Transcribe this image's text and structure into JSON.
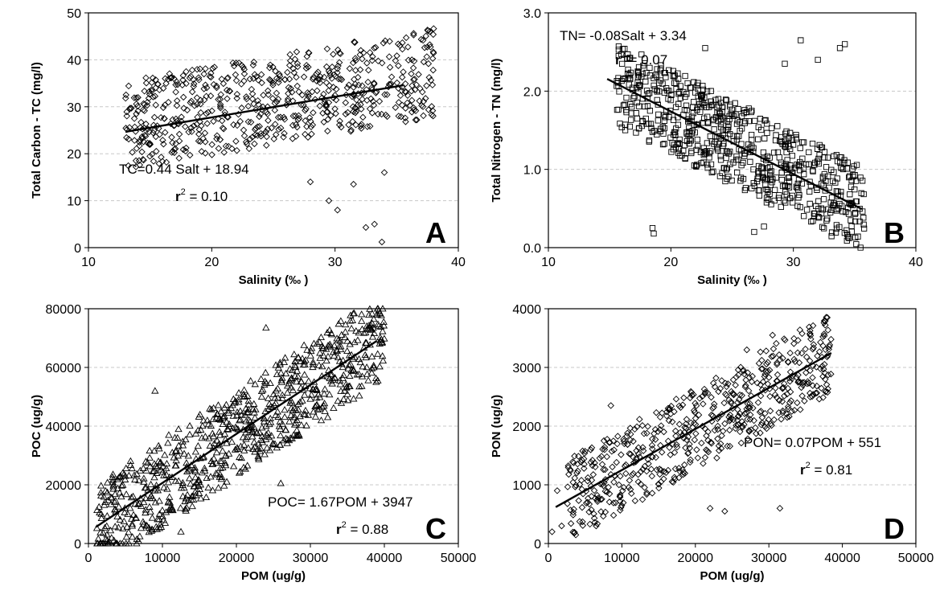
{
  "chart_data": [
    {
      "panel": "A",
      "type": "scatter",
      "marker": "diamond",
      "xlabel": "Salinity (‰ )",
      "ylabel": "Total Carbon - TC (mg/l)",
      "xlim": [
        10,
        40
      ],
      "ylim": [
        0,
        50
      ],
      "xticks": [
        10,
        20,
        30,
        40
      ],
      "yticks": [
        0,
        10,
        20,
        30,
        40,
        50
      ],
      "grid": true,
      "regression": {
        "slope": 0.44,
        "intercept": 18.94,
        "x_range": [
          13,
          35.5
        ]
      },
      "equation": {
        "main": "TC=0.44 Salt + 18.94",
        "r2_prefix": "r",
        "r2_value": " = 0.10"
      },
      "cluster": {
        "x_range": [
          13,
          38
        ],
        "y_low_offset": -8,
        "y_high_offset": 11,
        "n": 650
      },
      "outliers": [
        [
          30.2,
          8
        ],
        [
          31.5,
          13.5
        ],
        [
          32.5,
          4.3
        ],
        [
          33.2,
          5
        ],
        [
          33.8,
          1.2
        ],
        [
          28,
          14
        ],
        [
          29.5,
          10
        ],
        [
          34,
          16
        ]
      ]
    },
    {
      "panel": "B",
      "type": "scatter",
      "marker": "square",
      "xlabel": "Salinity (‰ )",
      "ylabel": "Total Nitrogen - TN (mg/l)",
      "xlim": [
        10,
        40
      ],
      "ylim": [
        0,
        3
      ],
      "xticks": [
        10,
        20,
        30,
        40
      ],
      "yticks": [
        0,
        1,
        2,
        3
      ],
      "ytick_decimals": 1,
      "grid": true,
      "regression": {
        "slope": -0.08,
        "intercept": 3.34,
        "x_range": [
          14.8,
          35.6
        ]
      },
      "equation": {
        "main": "TN= -0.08Salt + 3.34",
        "r2_prefix": "r",
        "r2_value": " = 0.07"
      },
      "cluster": {
        "x_range": [
          15.5,
          35.8
        ],
        "y_low_offset": -0.55,
        "y_high_offset": 0.55,
        "n": 700
      },
      "outliers": [
        [
          18.5,
          0.25
        ],
        [
          18.6,
          0.18
        ],
        [
          22.8,
          2.55
        ],
        [
          30.6,
          2.65
        ],
        [
          33.8,
          2.55
        ],
        [
          34.2,
          2.6
        ],
        [
          26.8,
          0.2
        ],
        [
          27.6,
          0.27
        ],
        [
          29.3,
          2.35
        ],
        [
          32,
          2.4
        ]
      ]
    },
    {
      "panel": "C",
      "type": "scatter",
      "marker": "triangle",
      "xlabel": "POM (ug/g)",
      "ylabel": "POC (ug/g)",
      "xlim": [
        0,
        50000
      ],
      "ylim": [
        0,
        80000
      ],
      "xticks": [
        0,
        10000,
        20000,
        30000,
        40000,
        50000
      ],
      "yticks": [
        0,
        20000,
        40000,
        60000,
        80000
      ],
      "grid": true,
      "regression": {
        "slope": 1.67,
        "intercept": 3947,
        "x_range": [
          1000,
          39000
        ]
      },
      "equation": {
        "main": "POC= 1.67POM + 3947",
        "r2_prefix": "r",
        "r2_value": " = 0.88"
      },
      "cluster": {
        "x_range": [
          1000,
          40000
        ],
        "y_low_offset": -15000,
        "y_high_offset": 15000,
        "n": 800
      },
      "outliers": [
        [
          1500,
          10500
        ],
        [
          2500,
          3000
        ],
        [
          9000,
          52000
        ],
        [
          24000,
          73500
        ],
        [
          12500,
          4000
        ],
        [
          26000,
          20500
        ],
        [
          37000,
          73000
        ],
        [
          38500,
          73500
        ]
      ]
    },
    {
      "panel": "D",
      "type": "scatter",
      "marker": "diamond",
      "xlabel": "POM (ug/g)",
      "ylabel": "PON (ug/g)",
      "xlim": [
        0,
        50000
      ],
      "ylim": [
        0,
        4000
      ],
      "xticks": [
        0,
        10000,
        20000,
        30000,
        40000,
        50000
      ],
      "yticks": [
        0,
        1000,
        2000,
        3000,
        4000
      ],
      "grid": true,
      "regression": {
        "slope": 0.07,
        "intercept": 551,
        "x_range": [
          1000,
          38500
        ]
      },
      "equation": {
        "main": "PON= 0.07POM + 551",
        "r2_prefix": "r",
        "r2_value": " = 0.81"
      },
      "cluster": {
        "x_range": [
          2500,
          38500
        ],
        "y_low_offset": -700,
        "y_high_offset": 700,
        "n": 600
      },
      "outliers": [
        [
          500,
          200
        ],
        [
          1200,
          900
        ],
        [
          1800,
          300
        ],
        [
          6500,
          300
        ],
        [
          8500,
          2350
        ],
        [
          31500,
          600
        ],
        [
          30500,
          3550
        ],
        [
          27000,
          3300
        ],
        [
          24000,
          550
        ],
        [
          22000,
          600
        ]
      ]
    }
  ]
}
